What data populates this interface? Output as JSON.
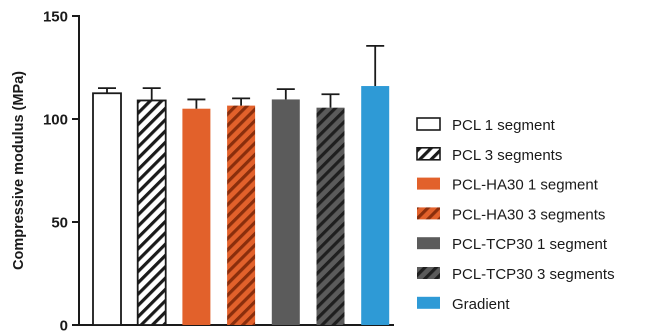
{
  "chart_data": {
    "type": "bar",
    "ylabel": "Compressive modulus (MPa)",
    "ylim": [
      0,
      150
    ],
    "yticks": [
      0,
      50,
      100,
      150
    ],
    "ytick_labels": [
      "0",
      "50",
      "100",
      "150"
    ],
    "grid": false,
    "legend_position": "right",
    "series": [
      {
        "name": "PCL 1 segment",
        "value": 112.5,
        "error": 2.5,
        "color": "#ffffff",
        "pattern": "solid"
      },
      {
        "name": "PCL 3 segments",
        "value": 109,
        "error": 6,
        "color": "#ffffff",
        "pattern": "hatch"
      },
      {
        "name": "PCL-HA30 1 segment",
        "value": 105,
        "error": 4.5,
        "color": "#e2612b",
        "pattern": "solid"
      },
      {
        "name": "PCL-HA30 3 segments",
        "value": 106.5,
        "error": 3.5,
        "color": "#e2612b",
        "pattern": "hatch"
      },
      {
        "name": "PCL-TCP30 1 segment",
        "value": 109.5,
        "error": 5,
        "color": "#5b5b5b",
        "pattern": "solid"
      },
      {
        "name": "PCL-TCP30 3 segments",
        "value": 105.5,
        "error": 6.5,
        "color": "#5b5b5b",
        "pattern": "hatch"
      },
      {
        "name": "Gradient",
        "value": 116,
        "error": 19.5,
        "color": "#2e9ad6",
        "pattern": "solid"
      }
    ]
  }
}
